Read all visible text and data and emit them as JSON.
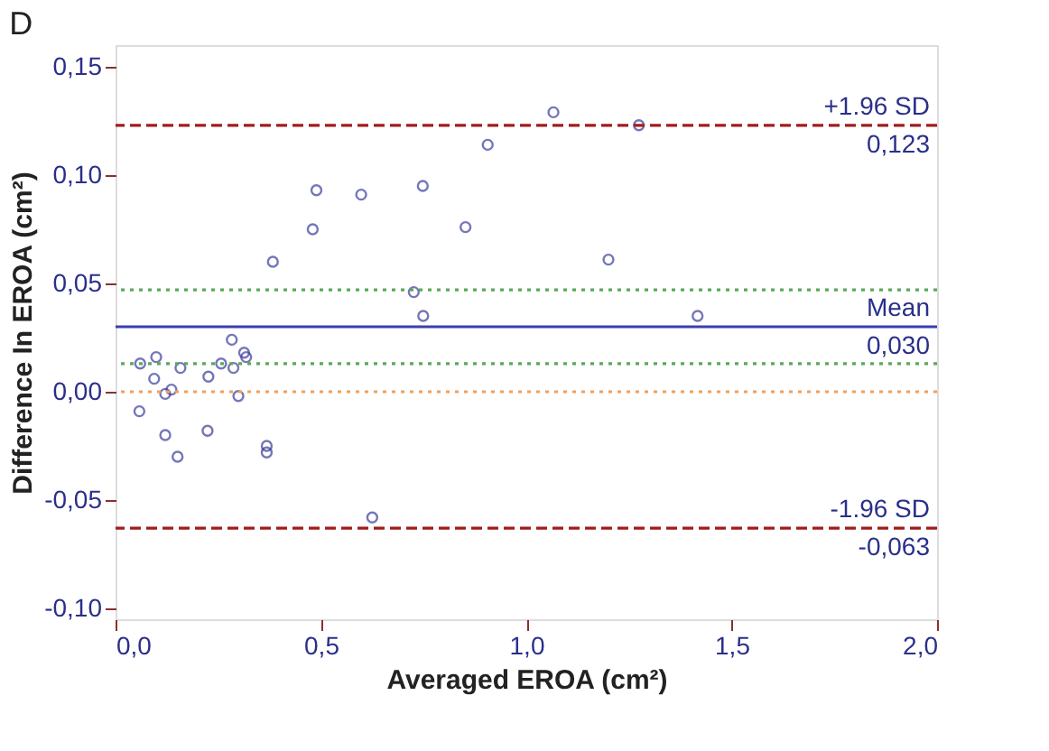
{
  "chart_data": {
    "type": "scatter",
    "title": "D",
    "xlabel": "Averaged EROA (cm²)",
    "ylabel": "Difference In EROA (cm²)",
    "x": [
      0.058,
      0.06,
      0.099,
      0.094,
      0.121,
      0.136,
      0.121,
      0.151,
      0.158,
      0.226,
      0.224,
      0.257,
      0.283,
      0.287,
      0.299,
      0.313,
      0.318,
      0.368,
      0.368,
      0.383,
      0.48,
      0.489,
      0.598,
      0.625,
      0.748,
      0.726,
      0.749,
      0.852,
      0.906,
      1.066,
      1.274,
      1.2,
      1.417
    ],
    "series": [
      {
        "color": "#3a3d9c",
        "values": [
          -0.009,
          0.013,
          0.016,
          0.006,
          -0.001,
          0.001,
          -0.02,
          -0.03,
          0.011,
          0.007,
          -0.018,
          0.013,
          0.024,
          0.011,
          -0.002,
          0.018,
          0.016,
          -0.025,
          -0.028,
          0.06,
          0.075,
          0.093,
          0.091,
          -0.058,
          0.095,
          0.046,
          0.035,
          0.076,
          0.114,
          0.129,
          0.123,
          0.061,
          0.035
        ]
      }
    ],
    "marker": "circle",
    "grid": false,
    "xlim": [
      0.0,
      2.0
    ],
    "xticks": [
      {
        "value": 0.0,
        "label": "0,0"
      },
      {
        "value": 0.5,
        "label": "0,5"
      },
      {
        "value": 1.0,
        "label": "1,0"
      },
      {
        "value": 1.5,
        "label": "1,5"
      },
      {
        "value": 2.0,
        "label": "2,0"
      }
    ],
    "ylim": [
      -0.105,
      0.16
    ],
    "yticks": [
      {
        "value": -0.1,
        "label": "-0,10"
      },
      {
        "value": -0.05,
        "label": "-0,05"
      },
      {
        "value": 0.0,
        "label": "0,00"
      },
      {
        "value": 0.05,
        "label": "0,05"
      },
      {
        "value": 0.1,
        "label": "0,10"
      },
      {
        "value": 0.15,
        "label": "0,15"
      }
    ],
    "ref_lines": [
      {
        "axis": "y",
        "value": 0.123,
        "label": "+1.96 SD",
        "color": "#a01c1c",
        "line_style": "dashed"
      },
      {
        "axis": "y",
        "value": 0.03,
        "label": "Mean",
        "color": "#3a3fb0",
        "line_style": "solid"
      },
      {
        "axis": "y",
        "value": -0.063,
        "label": "-1.96 SD",
        "color": "#a01c1c",
        "line_style": "dashed"
      },
      {
        "axis": "y",
        "value": 0.047,
        "color": "#5aa85a",
        "line_style": "dotted"
      },
      {
        "axis": "y",
        "value": 0.013,
        "color": "#5aa85a",
        "line_style": "dotted"
      },
      {
        "axis": "y",
        "value": 0.0,
        "color": "#f0a060",
        "line_style": "dotted"
      }
    ],
    "annotations": [
      {
        "text": "0,123",
        "y": 0.123
      },
      {
        "text": "0,030",
        "y": 0.03
      },
      {
        "text": "-0,063",
        "y": -0.063
      }
    ]
  }
}
